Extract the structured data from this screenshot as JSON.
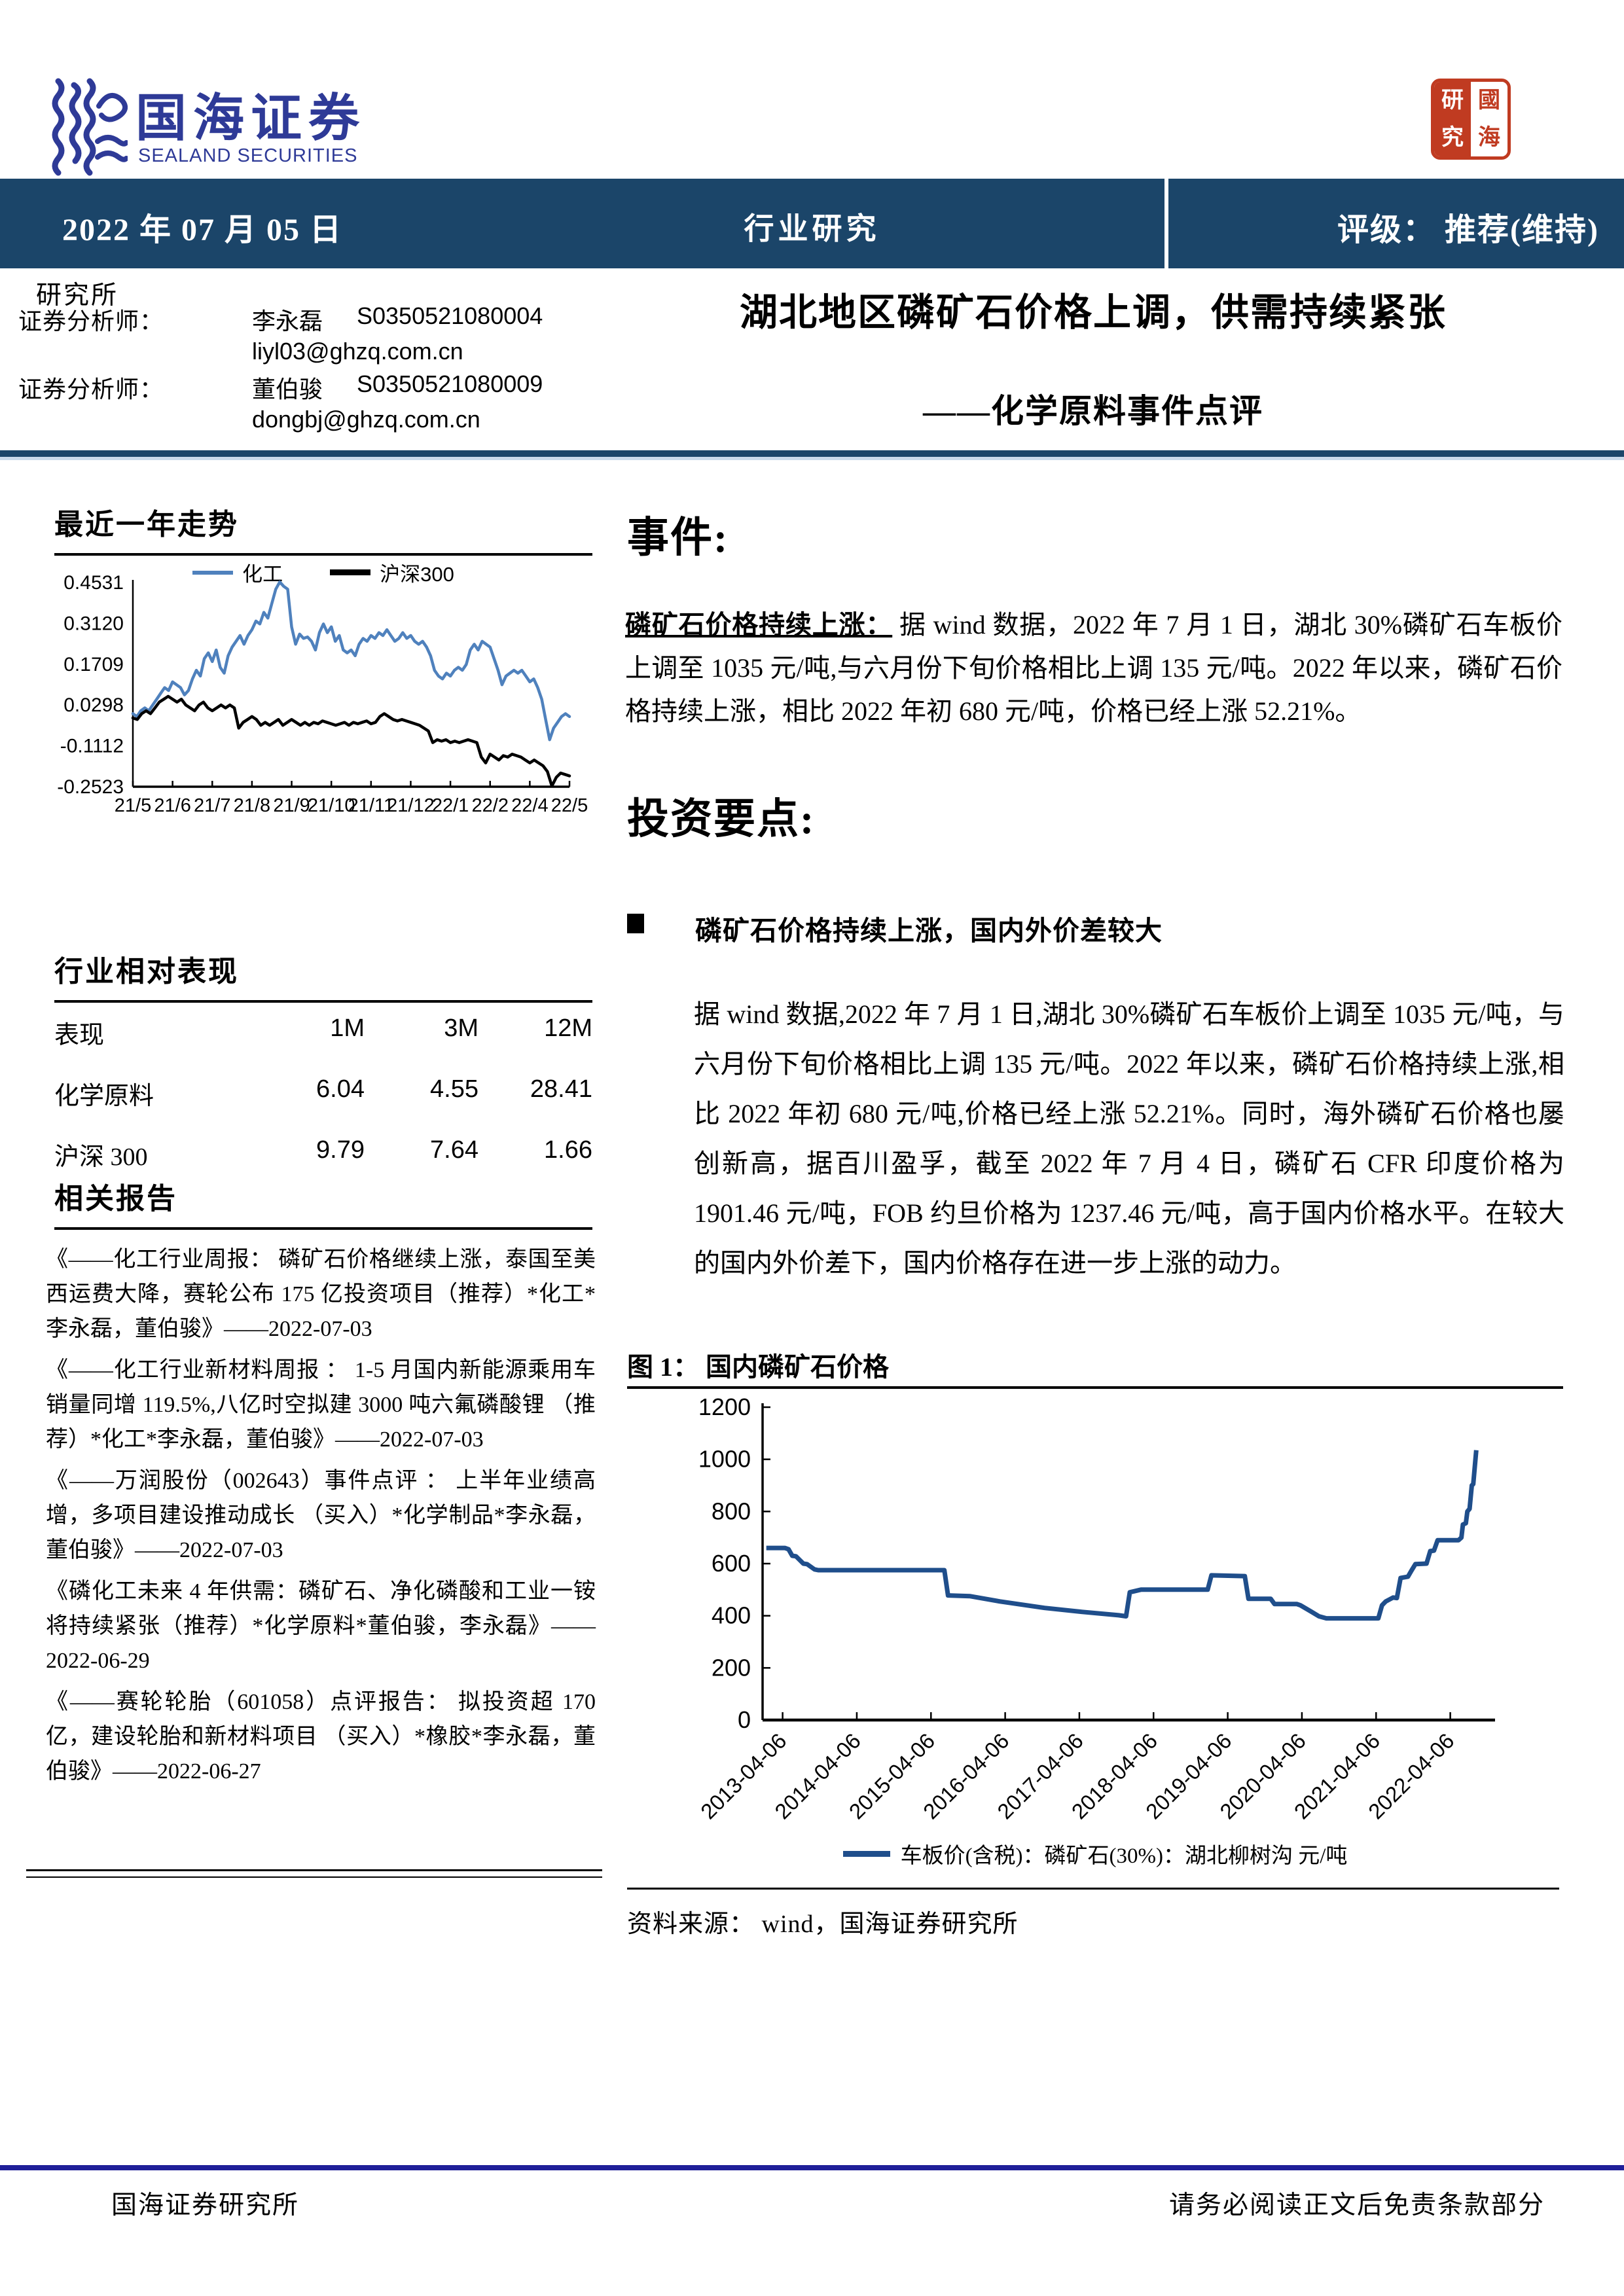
{
  "brand": {
    "name": "国海证券",
    "name_en": "SEALAND SECURITIES"
  },
  "stamp": {
    "tl": "研",
    "bl": "究",
    "tr": "國",
    "br": "海"
  },
  "header_bar": {
    "date": "2022 年 07 月 05 日",
    "center": "行业研究",
    "rating": "评级：  推荐(维持)"
  },
  "research": {
    "office": "研究所",
    "analysts": [
      {
        "role": "证券分析师：",
        "name": "李永磊",
        "cert": "S0350521080004",
        "email": "liyl03@ghzq.com.cn"
      },
      {
        "role": "证券分析师：",
        "name": "董伯骏",
        "cert": "S0350521080009",
        "email": "dongbj@ghzq.com.cn"
      }
    ]
  },
  "titles": {
    "main": "湖北地区磷矿石价格上调，供需持续紧张",
    "sub": "——化学原料事件点评"
  },
  "sidebar": {
    "trend_heading": "最近一年走势",
    "perf_heading": "行业相对表现",
    "perf_table": {
      "headers": [
        "表现",
        "1M",
        "3M",
        "12M"
      ],
      "rows": [
        {
          "name": "化学原料",
          "m1": "6.04",
          "m3": "4.55",
          "m12": "28.41"
        },
        {
          "name": "沪深 300",
          "m1": "9.79",
          "m3": "7.64",
          "m12": "1.66"
        }
      ]
    },
    "reports_heading": "相关报告",
    "reports": [
      "《——化工行业周报：  磷矿石价格继续上涨，泰国至美西运费大降，赛轮公布 175 亿投资项目（推荐）*化工*李永磊，董伯骏》——2022-07-03",
      "《——化工行业新材料周报 ：  1-5 月国内新能源乘用车销量同增 119.5%,八亿时空拟建 3000 吨六氟磷酸锂 （推荐）*化工*李永磊，董伯骏》——2022-07-03",
      "《——万润股份（002643）事件点评 ：  上半年业绩高增，多项目建设推动成长 （买入）*化学制品*李永磊，董伯骏》——2022-07-03",
      "《磷化工未来 4 年供需：磷矿石、净化磷酸和工业一铵将持续紧张（推荐）*化学原料*董伯骏，李永磊》——2022-06-29",
      "《——赛轮轮胎（601058）点评报告：  拟投资超 170 亿，建设轮胎和新材料项目 （买入）*橡胶*李永磊，董伯骏》——2022-06-27"
    ]
  },
  "main": {
    "event_heading": "事件:",
    "event_lead": "磷矿石价格持续上涨：",
    "event_body": "据 wind 数据，2022 年 7 月 1 日，湖北 30%磷矿石车板价上调至 1035 元/吨,与六月份下旬价格相比上调 135 元/吨。2022 年以来，磷矿石价格持续上涨，相比 2022 年初 680 元/吨，价格已经上涨 52.21%。",
    "points_heading": "投资要点:",
    "bullet": "磷矿石价格持续上涨，国内外价差较大",
    "body": "据 wind 数据,2022 年 7 月 1 日,湖北 30%磷矿石车板价上调至 1035 元/吨，与六月份下旬价格相比上调 135 元/吨。2022 年以来，磷矿石价格持续上涨,相比 2022 年初 680 元/吨,价格已经上涨 52.21%。同时，海外磷矿石价格也屡创新高，据百川盈孚，截至 2022 年 7 月 4 日，磷矿石 CFR 印度价格为 1901.46 元/吨，FOB 约旦价格为 1237.46 元/吨，高于国内价格水平。在较大的国内外价差下，国内价格存在进一步上涨的动力。",
    "figure_label": "图 1：",
    "figure_title": "国内磷矿石价格",
    "source": "资料来源：  wind，国海证券研究所"
  },
  "footer": {
    "left": "国海证券研究所",
    "right": "请务必阅读正文后免责条款部分"
  },
  "colors": {
    "bar_navy": "#1b4569",
    "footer_blue": "#1f1f99",
    "logo_blue": "#2e3a97",
    "stamp_red": "#c03b21",
    "trend_blue": "#4f81bd",
    "price_blue": "#1f4e8b"
  },
  "chart_data": [
    {
      "name": "recent-year-trend",
      "type": "line",
      "title": "最近一年走势",
      "legend_position": "top",
      "grid": false,
      "ylim": [
        -0.2523,
        0.4531
      ],
      "yticks": [
        "0.4531",
        "0.3120",
        "0.1709",
        "0.0298",
        "-0.1112",
        "-0.2523"
      ],
      "xlabels": [
        "21/5",
        "21/6",
        "21/7",
        "21/8",
        "21/9",
        "21/10",
        "21/11",
        "21/12",
        "22/1",
        "22/2",
        "22/4",
        "22/5"
      ],
      "series": [
        {
          "name": "化工",
          "color": "#4f81bd",
          "values": [
            0.0,
            -0.01,
            0.01,
            0.02,
            0.01,
            0.03,
            0.05,
            0.07,
            0.09,
            0.08,
            0.11,
            0.1,
            0.09,
            0.065,
            0.08,
            0.12,
            0.15,
            0.13,
            0.19,
            0.21,
            0.18,
            0.22,
            0.16,
            0.14,
            0.2,
            0.23,
            0.25,
            0.27,
            0.24,
            0.27,
            0.29,
            0.32,
            0.31,
            0.35,
            0.33,
            0.38,
            0.43,
            0.455,
            0.44,
            0.43,
            0.3,
            0.24,
            0.275,
            0.26,
            0.265,
            0.25,
            0.22,
            0.28,
            0.31,
            0.28,
            0.3,
            0.25,
            0.27,
            0.22,
            0.21,
            0.22,
            0.2,
            0.24,
            0.26,
            0.25,
            0.27,
            0.26,
            0.28,
            0.27,
            0.29,
            0.27,
            0.25,
            0.26,
            0.28,
            0.26,
            0.27,
            0.25,
            0.24,
            0.25,
            0.23,
            0.2,
            0.15,
            0.13,
            0.12,
            0.14,
            0.13,
            0.15,
            0.16,
            0.15,
            0.17,
            0.22,
            0.24,
            0.22,
            0.25,
            0.24,
            0.23,
            0.19,
            0.15,
            0.1,
            0.13,
            0.14,
            0.15,
            0.14,
            0.15,
            0.13,
            0.11,
            0.12,
            0.09,
            0.05,
            -0.02,
            -0.09,
            -0.05,
            -0.03,
            -0.01,
            0.0,
            -0.01
          ]
        },
        {
          "name": "沪深300",
          "color": "#000000",
          "values": [
            -0.015,
            -0.02,
            0.0,
            0.01,
            0.0,
            0.02,
            0.04,
            0.05,
            0.06,
            0.05,
            0.04,
            0.05,
            0.03,
            0.02,
            0.01,
            0.03,
            0.04,
            0.02,
            0.01,
            0.02,
            0.03,
            0.02,
            0.03,
            0.02,
            -0.05,
            -0.03,
            -0.02,
            -0.01,
            -0.02,
            -0.04,
            -0.03,
            -0.04,
            -0.03,
            -0.02,
            -0.04,
            -0.03,
            -0.02,
            -0.03,
            -0.04,
            -0.03,
            -0.04,
            -0.03,
            -0.035,
            -0.025,
            -0.03,
            -0.035,
            -0.04,
            -0.035,
            -0.03,
            -0.04,
            -0.03,
            -0.035,
            -0.03,
            -0.025,
            -0.035,
            -0.03,
            -0.01,
            0.0,
            -0.01,
            -0.02,
            -0.025,
            -0.02,
            -0.025,
            -0.03,
            -0.035,
            -0.04,
            -0.05,
            -0.06,
            -0.1,
            -0.09,
            -0.095,
            -0.09,
            -0.1,
            -0.095,
            -0.1,
            -0.095,
            -0.09,
            -0.095,
            -0.1,
            -0.15,
            -0.17,
            -0.14,
            -0.15,
            -0.16,
            -0.145,
            -0.15,
            -0.14,
            -0.145,
            -0.15,
            -0.16,
            -0.17,
            -0.16,
            -0.17,
            -0.18,
            -0.2,
            -0.25,
            -0.22,
            -0.205,
            -0.21,
            -0.215
          ]
        }
      ]
    },
    {
      "name": "domestic-phosphate-price",
      "type": "line",
      "title": "国内磷矿石价格",
      "legend": "车板价(含税)：磷矿石(30%)：湖北柳树沟  元/吨",
      "line_color": "#1f4e8b",
      "grid": false,
      "ylim": [
        0,
        1200
      ],
      "yticks": [
        "0",
        "200",
        "400",
        "600",
        "800",
        "1000",
        "1200"
      ],
      "x_range": [
        2013.0,
        2022.75
      ],
      "xtick_years": [
        2013.27,
        2014.27,
        2015.27,
        2016.27,
        2017.27,
        2018.27,
        2019.27,
        2020.27,
        2021.27,
        2022.27
      ],
      "xtick_labels": [
        "2013-04-06",
        "2014-04-06",
        "2015-04-06",
        "2016-04-06",
        "2017-04-06",
        "2018-04-06",
        "2019-04-06",
        "2020-04-06",
        "2021-04-06",
        "2022-04-06"
      ],
      "points": [
        [
          2013.05,
          660
        ],
        [
          2013.3,
          660
        ],
        [
          2013.35,
          655
        ],
        [
          2013.4,
          630
        ],
        [
          2013.45,
          628
        ],
        [
          2013.55,
          600
        ],
        [
          2013.6,
          598
        ],
        [
          2013.7,
          578
        ],
        [
          2013.75,
          575
        ],
        [
          2015.45,
          575
        ],
        [
          2015.5,
          478
        ],
        [
          2015.8,
          475
        ],
        [
          2016.2,
          455
        ],
        [
          2016.8,
          430
        ],
        [
          2017.3,
          415
        ],
        [
          2017.8,
          402
        ],
        [
          2017.9,
          398
        ],
        [
          2017.95,
          490
        ],
        [
          2018.1,
          500
        ],
        [
          2019.0,
          500
        ],
        [
          2019.05,
          555
        ],
        [
          2019.5,
          552
        ],
        [
          2019.55,
          465
        ],
        [
          2019.85,
          465
        ],
        [
          2019.9,
          445
        ],
        [
          2020.2,
          445
        ],
        [
          2020.25,
          440
        ],
        [
          2020.4,
          415
        ],
        [
          2020.5,
          398
        ],
        [
          2020.6,
          390
        ],
        [
          2021.3,
          390
        ],
        [
          2021.35,
          440
        ],
        [
          2021.4,
          455
        ],
        [
          2021.5,
          470
        ],
        [
          2021.55,
          468
        ],
        [
          2021.6,
          545
        ],
        [
          2021.7,
          550
        ],
        [
          2021.75,
          575
        ],
        [
          2021.8,
          598
        ],
        [
          2021.95,
          600
        ],
        [
          2022.0,
          648
        ],
        [
          2022.05,
          650
        ],
        [
          2022.1,
          690
        ],
        [
          2022.38,
          690
        ],
        [
          2022.42,
          700
        ],
        [
          2022.44,
          750
        ],
        [
          2022.48,
          755
        ],
        [
          2022.5,
          800
        ],
        [
          2022.53,
          810
        ],
        [
          2022.56,
          900
        ],
        [
          2022.58,
          905
        ],
        [
          2022.62,
          1035
        ]
      ]
    }
  ]
}
